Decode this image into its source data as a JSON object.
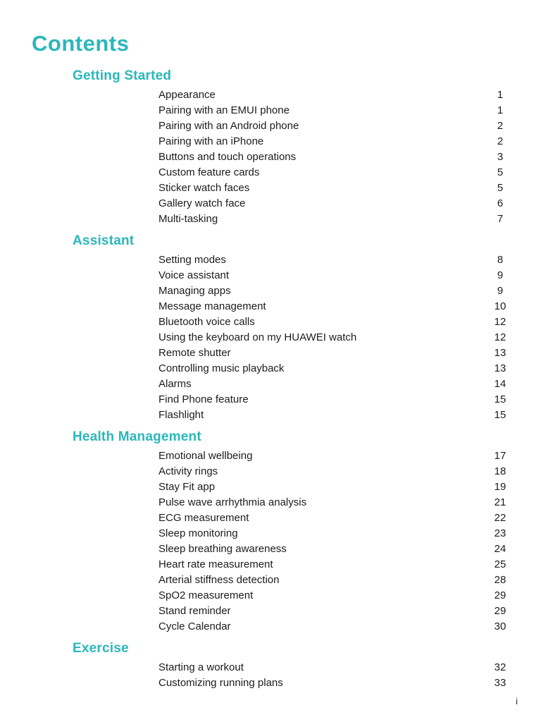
{
  "page": {
    "title": "Contents",
    "footer_page_number": "i",
    "accent_color": "#2ab7bb",
    "text_color": "#1c1c1c"
  },
  "sections": [
    {
      "title": "Getting Started",
      "entries": [
        {
          "label": "Appearance",
          "page": "1"
        },
        {
          "label": "Pairing with an EMUI phone",
          "page": "1"
        },
        {
          "label": "Pairing with an Android phone",
          "page": "2"
        },
        {
          "label": "Pairing with an iPhone",
          "page": "2"
        },
        {
          "label": "Buttons and touch operations",
          "page": "3"
        },
        {
          "label": "Custom feature cards",
          "page": "5"
        },
        {
          "label": "Sticker watch faces",
          "page": "5"
        },
        {
          "label": "Gallery watch face",
          "page": "6"
        },
        {
          "label": "Multi-tasking",
          "page": "7"
        }
      ]
    },
    {
      "title": "Assistant",
      "entries": [
        {
          "label": "Setting modes",
          "page": "8"
        },
        {
          "label": "Voice assistant",
          "page": "9"
        },
        {
          "label": "Managing apps",
          "page": "9"
        },
        {
          "label": "Message management",
          "page": "10"
        },
        {
          "label": "Bluetooth voice calls",
          "page": "12"
        },
        {
          "label": "Using the keyboard on my HUAWEI watch",
          "page": "12"
        },
        {
          "label": "Remote shutter",
          "page": "13"
        },
        {
          "label": "Controlling music playback",
          "page": "13"
        },
        {
          "label": "Alarms",
          "page": "14"
        },
        {
          "label": "Find Phone feature",
          "page": "15"
        },
        {
          "label": "Flashlight",
          "page": "15"
        }
      ]
    },
    {
      "title": "Health Management",
      "entries": [
        {
          "label": "Emotional wellbeing",
          "page": "17"
        },
        {
          "label": "Activity rings",
          "page": "18"
        },
        {
          "label": "Stay Fit app",
          "page": "19"
        },
        {
          "label": "Pulse wave arrhythmia analysis",
          "page": "21"
        },
        {
          "label": "ECG measurement",
          "page": "22"
        },
        {
          "label": "Sleep monitoring",
          "page": "23"
        },
        {
          "label": "Sleep breathing awareness",
          "page": "24"
        },
        {
          "label": "Heart rate measurement",
          "page": "25"
        },
        {
          "label": "Arterial stiffness detection",
          "page": "28"
        },
        {
          "label": "SpO2 measurement",
          "page": "29"
        },
        {
          "label": "Stand reminder",
          "page": "29"
        },
        {
          "label": "Cycle Calendar",
          "page": "30"
        }
      ]
    },
    {
      "title": "Exercise",
      "entries": [
        {
          "label": "Starting a workout",
          "page": "32"
        },
        {
          "label": "Customizing running plans",
          "page": "33"
        }
      ]
    }
  ]
}
